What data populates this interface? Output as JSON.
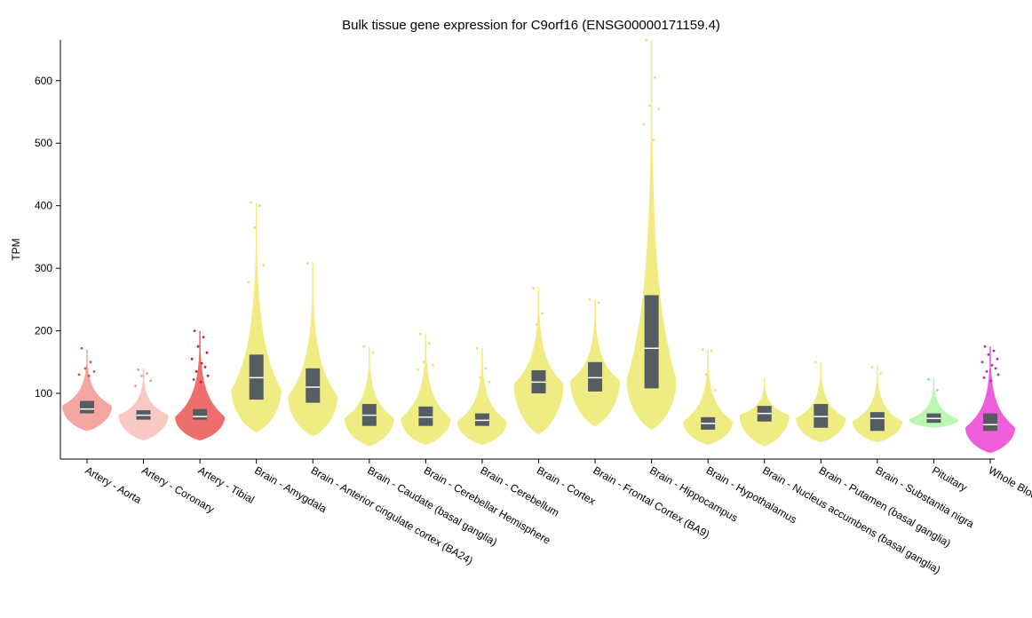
{
  "chart_data": {
    "type": "violin",
    "title": "Bulk tissue gene expression for C9orf16 (ENSG00000171159.4)",
    "xlabel": "",
    "ylabel": "TPM",
    "ylim": [
      -5,
      665
    ],
    "yticks": [
      100,
      200,
      300,
      400,
      500,
      600
    ],
    "grid": false,
    "legend": "none",
    "categories": [
      "Artery - Aorta",
      "Artery - Coronary",
      "Artery - Tibial",
      "Brain - Amygdala",
      "Brain - Anterior cingulate cortex (BA24)",
      "Brain - Caudate (basal ganglia)",
      "Brain - Cerebellar Hemisphere",
      "Brain - Cerebellum",
      "Brain - Cortex",
      "Brain - Frontal Cortex (BA9)",
      "Brain - Hippocampus",
      "Brain - Hypothalamus",
      "Brain - Nucleus accumbens (basal ganglia)",
      "Brain - Putamen (basal ganglia)",
      "Brain - Substantia nigra",
      "Pituitary",
      "Whole Blood"
    ],
    "colors": [
      "#f5a6a3",
      "#f8c9c3",
      "#ee6e6e",
      "#f0ec84",
      "#f0ec84",
      "#f0ec84",
      "#f0ec84",
      "#f0ec84",
      "#f0ec84",
      "#f0ec84",
      "#f0ec84",
      "#f0ec84",
      "#f0ec84",
      "#f0ec84",
      "#f0ec84",
      "#b9f7b3",
      "#ef5ddb"
    ],
    "outlier_colors": [
      "#e04848",
      "#e89a94",
      "#cc1e2a",
      "#e2e07a",
      "#e2e07a",
      "#e2e07a",
      "#e2e07a",
      "#e2e07a",
      "#e2e07a",
      "#e2e07a",
      "#e2e07a",
      "#e2e07a",
      "#e2e07a",
      "#e2e07a",
      "#e2e07a",
      "#8fe08a",
      "#c020b0"
    ],
    "median": [
      75,
      65,
      63,
      125,
      110,
      65,
      62,
      57,
      118,
      125,
      172,
      52,
      68,
      63,
      60,
      60,
      50
    ],
    "q1": [
      68,
      58,
      58,
      90,
      85,
      48,
      48,
      48,
      100,
      103,
      108,
      42,
      55,
      45,
      40,
      53,
      40
    ],
    "q3": [
      88,
      73,
      75,
      162,
      140,
      83,
      79,
      68,
      137,
      150,
      257,
      62,
      80,
      83,
      70,
      68,
      68
    ],
    "min": [
      40,
      25,
      25,
      38,
      32,
      16,
      18,
      18,
      35,
      48,
      42,
      18,
      16,
      22,
      22,
      45,
      5
    ],
    "max": [
      170,
      140,
      200,
      405,
      310,
      175,
      195,
      172,
      270,
      250,
      665,
      170,
      125,
      150,
      145,
      125,
      175
    ],
    "widest_at": [
      80,
      65,
      62,
      105,
      95,
      60,
      60,
      55,
      115,
      120,
      120,
      55,
      65,
      60,
      55,
      58,
      45
    ],
    "outliers": [
      [
        172,
        150,
        140,
        135,
        130,
        128
      ],
      [
        138,
        132,
        128,
        120,
        112
      ],
      [
        200,
        190,
        175,
        165,
        155,
        148,
        142,
        135,
        128,
        122,
        118
      ],
      [
        405,
        400,
        365,
        305,
        278
      ],
      [
        308
      ],
      [
        175,
        165
      ],
      [
        195,
        180,
        150,
        145,
        138
      ],
      [
        172,
        140,
        125,
        118
      ],
      [
        268,
        228,
        210
      ],
      [
        250,
        245
      ],
      [
        665,
        605,
        560,
        555,
        530,
        505
      ],
      [
        170,
        168,
        130,
        105
      ],
      [],
      [
        150
      ],
      [
        142,
        132
      ],
      [
        122,
        105
      ],
      [
        175,
        168,
        162,
        155,
        150,
        145,
        140,
        135,
        130,
        125,
        120
      ]
    ]
  }
}
